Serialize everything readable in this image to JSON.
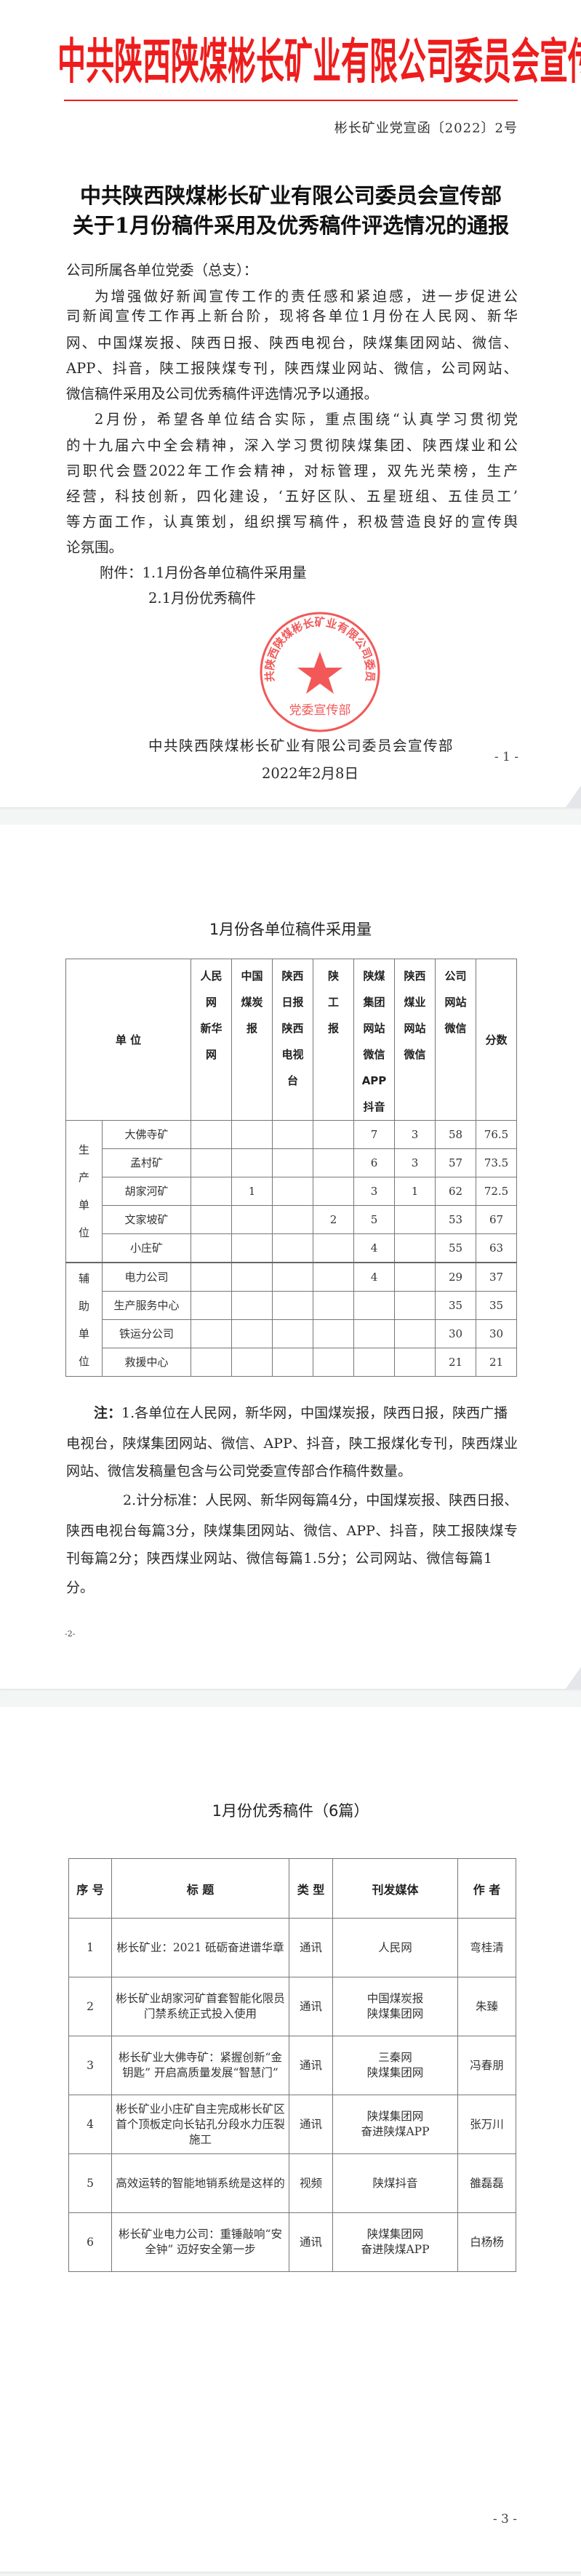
{
  "page1": {
    "header_title": "中共陕西陕煤彬长矿业有限公司委员会宣传部",
    "doc_number": "彬长矿业党宣函〔2022〕2号",
    "title_lines": [
      "中共陕西陕煤彬长矿业有限公司委员会宣传部",
      "关于1月份稿件采用及优秀稿件评选情况的通报"
    ],
    "salutation": "公司所属各单位党委（总支）：",
    "paragraph1": [
      "为增强做好新闻宣传工作的责任感和紧迫感，进一步促进公",
      "司新闻宣传工作再上新台阶，现将各单位1月份在人民网、新华",
      "网、中国煤炭报、陕西日报、陕西电视台，陕煤集团网站、微信、",
      "APP、抖音，陕工报陕煤专刊，陕西煤业网站、微信，公司网站、",
      "微信稿件采用及公司优秀稿件评选情况予以通报。"
    ],
    "paragraph2": [
      "2月份，希望各单位结合实际，重点围绕“认真学习贯彻党",
      "的十九届六中全会精神，深入学习贯彻陕煤集团、陕西煤业和公",
      "司职代会暨2022年工作会精神，对标管理，双先光荣榜，生产",
      "经营，科技创新，四化建设，‘五好区队、五星班组、五佳员工’",
      "等方面工作，认真策划，组织撰写稿件，积极营造良好的宣传舆",
      "论氛围。"
    ],
    "attachments": [
      "附件：1.1月份各单位稿件采用量",
      "2.1月份优秀稿件"
    ],
    "signature": "中共陕西陕煤彬长矿业有限公司委员会宣传部",
    "date": "2022年2月8日",
    "seal": {
      "ring_text": "中共陕西陕煤彬长矿业有限公司委员会",
      "center_text": "党委宣传部",
      "color": "#f03c3c"
    },
    "page_number": "- 1 -"
  },
  "page2": {
    "title": "1月份各单位稿件采用量",
    "headers": [
      "单 位",
      "人民\n网\n新华\n网",
      "中国\n煤炭\n报",
      "陕西\n日报\n陕西\n电视\n台",
      "陕\n工\n报",
      "陕煤\n集团\n网站\n微信\nAPP\n抖音",
      "陕西\n煤业\n网站\n微信",
      "公司\n网站\n微信",
      "分数"
    ],
    "groups": [
      {
        "label": "生\n产\n单\n位",
        "rows": [
          [
            "大佛寺矿",
            "",
            "",
            "",
            "",
            "7",
            "3",
            "58",
            "76.5"
          ],
          [
            "孟村矿",
            "",
            "",
            "",
            "",
            "6",
            "3",
            "57",
            "73.5"
          ],
          [
            "胡家河矿",
            "",
            "1",
            "",
            "",
            "3",
            "1",
            "62",
            "72.5"
          ],
          [
            "文家坡矿",
            "",
            "",
            "",
            "2",
            "5",
            "",
            "53",
            "67"
          ],
          [
            "小庄矿",
            "",
            "",
            "",
            "",
            "4",
            "",
            "55",
            "63"
          ]
        ]
      },
      {
        "label": "辅\n助\n单\n位",
        "rows": [
          [
            "电力公司",
            "",
            "",
            "",
            "",
            "4",
            "",
            "29",
            "37"
          ],
          [
            "生产服务中心",
            "",
            "",
            "",
            "",
            "",
            "",
            "35",
            "35"
          ],
          [
            "铁运分公司",
            "",
            "",
            "",
            "",
            "",
            "",
            "30",
            "30"
          ],
          [
            "救援中心",
            "",
            "",
            "",
            "",
            "",
            "",
            "21",
            "21"
          ]
        ]
      }
    ],
    "note_label": "注：",
    "note_lines": [
      "1.各单位在人民网，新华网，中国煤炭报，陕西日报，陕西广播",
      "电视台，陕煤集团网站、微信、APP、抖音，陕工报煤化专刊，陕西煤业",
      "网站、微信发稿量包含与公司党委宣传部合作稿件数量。",
      "2.计分标准：人民网、新华网每篇4分，中国煤炭报、陕西日报、",
      "陕西电视台每篇3分，陕煤集团网站、微信、APP、抖音，陕工报陕煤专",
      "刊每篇2分；陕西煤业网站、微信每篇1.5分；公司网站、微信每篇1",
      "分。"
    ],
    "page_number": "-2-"
  },
  "page3": {
    "title": "1月份优秀稿件（6篇）",
    "headers": [
      "序 号",
      "标 题",
      "类 型",
      "刊发媒体",
      "作 者"
    ],
    "rows": [
      [
        "1",
        "彬长矿业：2021 砥砺奋进谱华章",
        "通讯",
        "人民网",
        "弯桂清"
      ],
      [
        "2",
        "彬长矿业胡家河矿首套智能化限员门禁系统正式投入使用",
        "通讯",
        "中国煤炭报\n陕煤集团网",
        "朱臻"
      ],
      [
        "3",
        "彬长矿业大佛寺矿：紧握创新“金钥匙” 开启高质量发展“智慧门”",
        "通讯",
        "三秦网\n陕煤集团网",
        "冯春朋"
      ],
      [
        "4",
        "彬长矿业小庄矿自主完成彬长矿区首个顶板定向长钻孔分段水力压裂施工",
        "通讯",
        "陕煤集团网\n奋进陕煤APP",
        "张万川"
      ],
      [
        "5",
        "高效运转的智能地销系统是这样的",
        "视频",
        "陕煤抖音",
        "雒磊磊"
      ],
      [
        "6",
        "彬长矿业电力公司：重锤敲响“安全钟” 迈好安全第一步",
        "通讯",
        "陕煤集团网\n奋进陕煤APP",
        "白杨杨"
      ]
    ],
    "page_number": "- 3 -"
  },
  "colors": {
    "header_red": "#ee1c1c",
    "page_gap": "#f4f5f5",
    "text": "#2a2a2a"
  }
}
